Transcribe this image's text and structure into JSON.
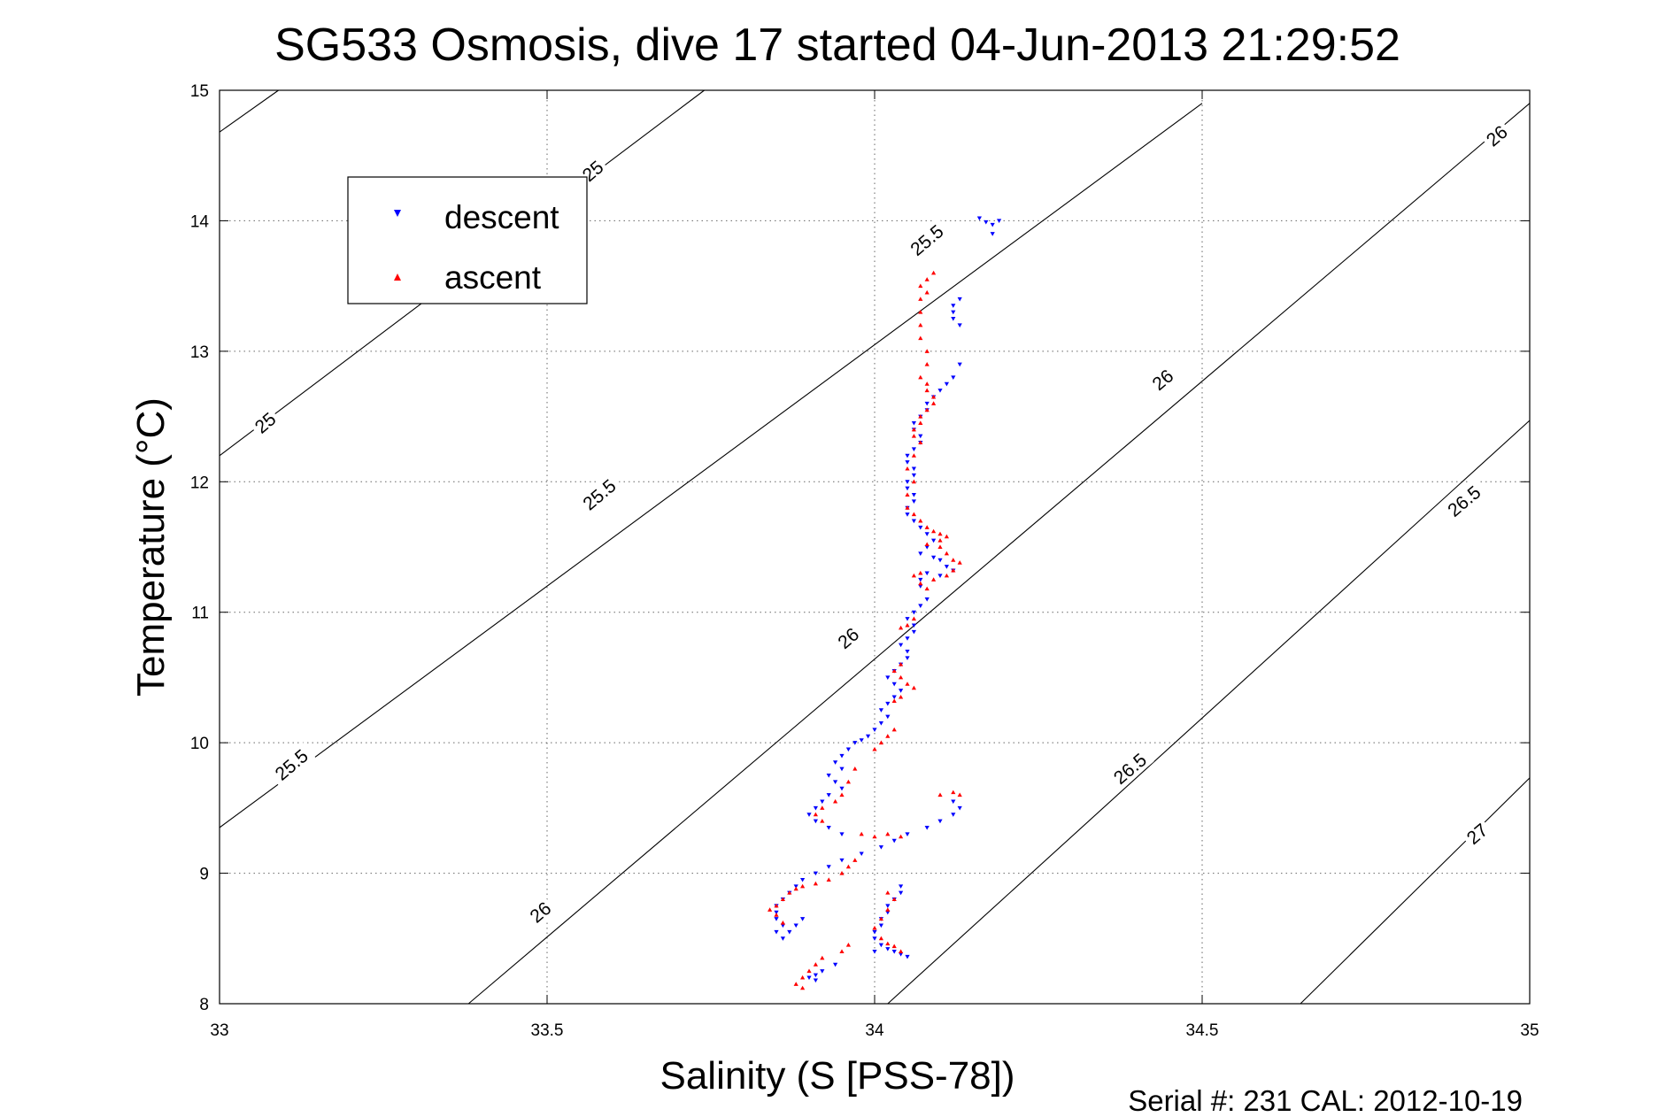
{
  "chart_data": {
    "type": "scatter",
    "title": "SG533 Osmosis, dive 17 started 04-Jun-2013 21:29:52",
    "xlabel": "Salinity (S [PSS-78])",
    "ylabel": "Temperature (°C)",
    "footer": "Serial #: 231  CAL: 2012-10-19",
    "xlim": [
      33,
      35
    ],
    "ylim": [
      8,
      15
    ],
    "xticks": [
      33,
      33.5,
      34,
      34.5,
      35
    ],
    "xtick_labels": [
      "33",
      "33.5",
      "34",
      "34.5",
      "35"
    ],
    "yticks": [
      8,
      9,
      10,
      11,
      12,
      13,
      14,
      15
    ],
    "ytick_labels": [
      "8",
      "9",
      "10",
      "11",
      "12",
      "13",
      "14",
      "15"
    ],
    "grid": true,
    "legend_position": "top-left",
    "contours": {
      "note_levels": [
        25,
        25.5,
        26,
        26.5,
        27
      ],
      "lines": [
        {
          "level": 25,
          "points": [
            [
              33,
              14.68
            ],
            [
              33.09,
              15
            ]
          ]
        },
        {
          "level": 25,
          "points": [
            [
              33,
              12.2
            ],
            [
              33.74,
              15
            ]
          ]
        },
        {
          "level": 25.5,
          "points": [
            [
              33,
              9.35
            ],
            [
              34.5,
              14.9
            ]
          ]
        },
        {
          "level": 26,
          "points": [
            [
              33.38,
              8
            ],
            [
              35,
              14.9
            ]
          ]
        },
        {
          "level": 26.5,
          "points": [
            [
              34.02,
              8
            ],
            [
              35,
              12.47
            ]
          ]
        },
        {
          "level": 27,
          "points": [
            [
              34.65,
              8
            ],
            [
              35,
              9.73
            ]
          ]
        }
      ],
      "labels": [
        {
          "text": "25",
          "x": 33.57,
          "y": 14.38
        },
        {
          "text": "25",
          "x": 33.07,
          "y": 12.45
        },
        {
          "text": "25.5",
          "x": 34.08,
          "y": 13.85
        },
        {
          "text": "25.5",
          "x": 33.58,
          "y": 11.9
        },
        {
          "text": "25.5",
          "x": 33.11,
          "y": 9.83
        },
        {
          "text": "26",
          "x": 34.95,
          "y": 14.65
        },
        {
          "text": "26",
          "x": 34.44,
          "y": 12.78
        },
        {
          "text": "26",
          "x": 33.96,
          "y": 10.8
        },
        {
          "text": "26",
          "x": 33.49,
          "y": 8.7
        },
        {
          "text": "26.5",
          "x": 34.9,
          "y": 11.85
        },
        {
          "text": "26.5",
          "x": 34.39,
          "y": 9.8
        },
        {
          "text": "27",
          "x": 34.92,
          "y": 9.3
        }
      ]
    },
    "series": [
      {
        "name": "descent",
        "color": "#0000ff",
        "marker": "triangle-down",
        "points": [
          [
            34.16,
            14.02
          ],
          [
            34.17,
            13.99
          ],
          [
            34.18,
            13.97
          ],
          [
            34.19,
            14.0
          ],
          [
            34.18,
            13.9
          ],
          [
            34.13,
            13.4
          ],
          [
            34.12,
            13.35
          ],
          [
            34.12,
            13.3
          ],
          [
            34.12,
            13.25
          ],
          [
            34.13,
            13.2
          ],
          [
            34.13,
            12.9
          ],
          [
            34.12,
            12.8
          ],
          [
            34.11,
            12.75
          ],
          [
            34.1,
            12.7
          ],
          [
            34.09,
            12.65
          ],
          [
            34.08,
            12.6
          ],
          [
            34.08,
            12.55
          ],
          [
            34.07,
            12.5
          ],
          [
            34.06,
            12.45
          ],
          [
            34.06,
            12.4
          ],
          [
            34.07,
            12.35
          ],
          [
            34.07,
            12.3
          ],
          [
            34.06,
            12.25
          ],
          [
            34.05,
            12.2
          ],
          [
            34.05,
            12.15
          ],
          [
            34.06,
            12.1
          ],
          [
            34.06,
            12.05
          ],
          [
            34.05,
            12.0
          ],
          [
            34.05,
            11.95
          ],
          [
            34.06,
            11.9
          ],
          [
            34.06,
            11.85
          ],
          [
            34.05,
            11.8
          ],
          [
            34.05,
            11.75
          ],
          [
            34.06,
            11.7
          ],
          [
            34.07,
            11.65
          ],
          [
            34.08,
            11.6
          ],
          [
            34.09,
            11.55
          ],
          [
            34.08,
            11.5
          ],
          [
            34.07,
            11.45
          ],
          [
            34.09,
            11.42
          ],
          [
            34.1,
            11.4
          ],
          [
            34.11,
            11.35
          ],
          [
            34.12,
            11.32
          ],
          [
            34.1,
            11.28
          ],
          [
            34.08,
            11.3
          ],
          [
            34.07,
            11.25
          ],
          [
            34.07,
            11.2
          ],
          [
            34.08,
            11.1
          ],
          [
            34.07,
            11.05
          ],
          [
            34.06,
            11.0
          ],
          [
            34.05,
            10.95
          ],
          [
            34.06,
            10.9
          ],
          [
            34.06,
            10.85
          ],
          [
            34.05,
            10.8
          ],
          [
            34.04,
            10.75
          ],
          [
            34.05,
            10.7
          ],
          [
            34.05,
            10.65
          ],
          [
            34.04,
            10.6
          ],
          [
            34.03,
            10.55
          ],
          [
            34.02,
            10.5
          ],
          [
            34.03,
            10.45
          ],
          [
            34.04,
            10.4
          ],
          [
            34.03,
            10.35
          ],
          [
            34.02,
            10.3
          ],
          [
            34.01,
            10.25
          ],
          [
            34.02,
            10.2
          ],
          [
            34.01,
            10.15
          ],
          [
            34.0,
            10.1
          ],
          [
            33.99,
            10.05
          ],
          [
            33.98,
            10.02
          ],
          [
            33.97,
            10.0
          ],
          [
            33.96,
            9.95
          ],
          [
            33.95,
            9.9
          ],
          [
            33.94,
            9.85
          ],
          [
            33.95,
            9.8
          ],
          [
            33.93,
            9.75
          ],
          [
            33.94,
            9.7
          ],
          [
            33.95,
            9.65
          ],
          [
            33.93,
            9.6
          ],
          [
            33.92,
            9.55
          ],
          [
            33.91,
            9.5
          ],
          [
            33.9,
            9.45
          ],
          [
            33.91,
            9.4
          ],
          [
            33.93,
            9.35
          ],
          [
            33.95,
            9.3
          ],
          [
            34.12,
            9.55
          ],
          [
            34.13,
            9.5
          ],
          [
            34.12,
            9.45
          ],
          [
            34.1,
            9.4
          ],
          [
            34.08,
            9.35
          ],
          [
            34.05,
            9.3
          ],
          [
            34.03,
            9.25
          ],
          [
            34.01,
            9.2
          ],
          [
            33.98,
            9.15
          ],
          [
            33.95,
            9.1
          ],
          [
            33.93,
            9.05
          ],
          [
            33.91,
            9.0
          ],
          [
            33.89,
            8.95
          ],
          [
            33.88,
            8.9
          ],
          [
            33.87,
            8.85
          ],
          [
            33.86,
            8.8
          ],
          [
            33.85,
            8.75
          ],
          [
            33.85,
            8.7
          ],
          [
            33.85,
            8.65
          ],
          [
            33.86,
            8.6
          ],
          [
            33.85,
            8.55
          ],
          [
            33.86,
            8.5
          ],
          [
            33.87,
            8.55
          ],
          [
            33.88,
            8.6
          ],
          [
            33.89,
            8.65
          ],
          [
            34.04,
            8.9
          ],
          [
            34.04,
            8.85
          ],
          [
            34.03,
            8.8
          ],
          [
            34.02,
            8.75
          ],
          [
            34.02,
            8.7
          ],
          [
            34.01,
            8.65
          ],
          [
            34.01,
            8.6
          ],
          [
            34.0,
            8.55
          ],
          [
            34.0,
            8.5
          ],
          [
            34.01,
            8.45
          ],
          [
            34.02,
            8.42
          ],
          [
            34.03,
            8.4
          ],
          [
            34.04,
            8.38
          ],
          [
            34.05,
            8.36
          ],
          [
            34.0,
            8.4
          ],
          [
            33.94,
            8.3
          ],
          [
            33.92,
            8.25
          ],
          [
            33.91,
            8.22
          ],
          [
            33.9,
            8.2
          ],
          [
            33.91,
            8.18
          ]
        ]
      },
      {
        "name": "ascent",
        "color": "#ff0000",
        "marker": "triangle-up",
        "points": [
          [
            34.09,
            13.6
          ],
          [
            34.08,
            13.55
          ],
          [
            34.07,
            13.5
          ],
          [
            34.08,
            13.45
          ],
          [
            34.07,
            13.4
          ],
          [
            34.07,
            13.3
          ],
          [
            34.07,
            13.2
          ],
          [
            34.07,
            13.1
          ],
          [
            34.08,
            13.0
          ],
          [
            34.08,
            12.9
          ],
          [
            34.07,
            12.8
          ],
          [
            34.08,
            12.75
          ],
          [
            34.08,
            12.7
          ],
          [
            34.09,
            12.65
          ],
          [
            34.09,
            12.6
          ],
          [
            34.08,
            12.55
          ],
          [
            34.07,
            12.5
          ],
          [
            34.07,
            12.45
          ],
          [
            34.06,
            12.4
          ],
          [
            34.06,
            12.35
          ],
          [
            34.07,
            12.3
          ],
          [
            34.06,
            12.2
          ],
          [
            34.05,
            12.1
          ],
          [
            34.06,
            12.0
          ],
          [
            34.05,
            11.9
          ],
          [
            34.05,
            11.8
          ],
          [
            34.06,
            11.75
          ],
          [
            34.07,
            11.7
          ],
          [
            34.08,
            11.65
          ],
          [
            34.09,
            11.62
          ],
          [
            34.1,
            11.6
          ],
          [
            34.11,
            11.58
          ],
          [
            34.1,
            11.55
          ],
          [
            34.08,
            11.52
          ],
          [
            34.1,
            11.5
          ],
          [
            34.11,
            11.45
          ],
          [
            34.12,
            11.4
          ],
          [
            34.13,
            11.38
          ],
          [
            34.12,
            11.32
          ],
          [
            34.11,
            11.28
          ],
          [
            34.09,
            11.25
          ],
          [
            34.07,
            11.3
          ],
          [
            34.06,
            11.28
          ],
          [
            34.07,
            11.22
          ],
          [
            34.08,
            11.18
          ],
          [
            34.06,
            10.95
          ],
          [
            34.05,
            10.9
          ],
          [
            34.04,
            10.88
          ],
          [
            34.04,
            10.6
          ],
          [
            34.03,
            10.55
          ],
          [
            34.04,
            10.5
          ],
          [
            34.05,
            10.45
          ],
          [
            34.06,
            10.42
          ],
          [
            34.04,
            10.35
          ],
          [
            34.03,
            10.32
          ],
          [
            34.03,
            10.1
          ],
          [
            34.02,
            10.05
          ],
          [
            34.01,
            10.0
          ],
          [
            34.0,
            9.95
          ],
          [
            33.97,
            9.8
          ],
          [
            33.96,
            9.7
          ],
          [
            33.95,
            9.6
          ],
          [
            33.94,
            9.55
          ],
          [
            33.92,
            9.5
          ],
          [
            33.91,
            9.45
          ],
          [
            33.92,
            9.4
          ],
          [
            33.98,
            9.3
          ],
          [
            34.0,
            9.28
          ],
          [
            34.02,
            9.3
          ],
          [
            34.04,
            9.28
          ],
          [
            34.1,
            9.6
          ],
          [
            34.12,
            9.62
          ],
          [
            34.13,
            9.6
          ],
          [
            33.97,
            9.1
          ],
          [
            33.96,
            9.05
          ],
          [
            33.95,
            9.0
          ],
          [
            33.93,
            8.95
          ],
          [
            33.91,
            8.92
          ],
          [
            33.89,
            8.9
          ],
          [
            33.88,
            8.88
          ],
          [
            33.87,
            8.85
          ],
          [
            33.86,
            8.8
          ],
          [
            33.85,
            8.75
          ],
          [
            33.84,
            8.72
          ],
          [
            33.85,
            8.68
          ],
          [
            33.86,
            8.62
          ],
          [
            34.02,
            8.85
          ],
          [
            34.03,
            8.8
          ],
          [
            34.02,
            8.72
          ],
          [
            34.01,
            8.65
          ],
          [
            34.0,
            8.58
          ],
          [
            34.01,
            8.5
          ],
          [
            34.02,
            8.46
          ],
          [
            34.03,
            8.44
          ],
          [
            34.04,
            8.4
          ],
          [
            33.96,
            8.45
          ],
          [
            33.95,
            8.4
          ],
          [
            33.92,
            8.35
          ],
          [
            33.91,
            8.3
          ],
          [
            33.9,
            8.25
          ],
          [
            33.89,
            8.2
          ],
          [
            33.88,
            8.15
          ],
          [
            33.89,
            8.12
          ]
        ]
      }
    ]
  }
}
